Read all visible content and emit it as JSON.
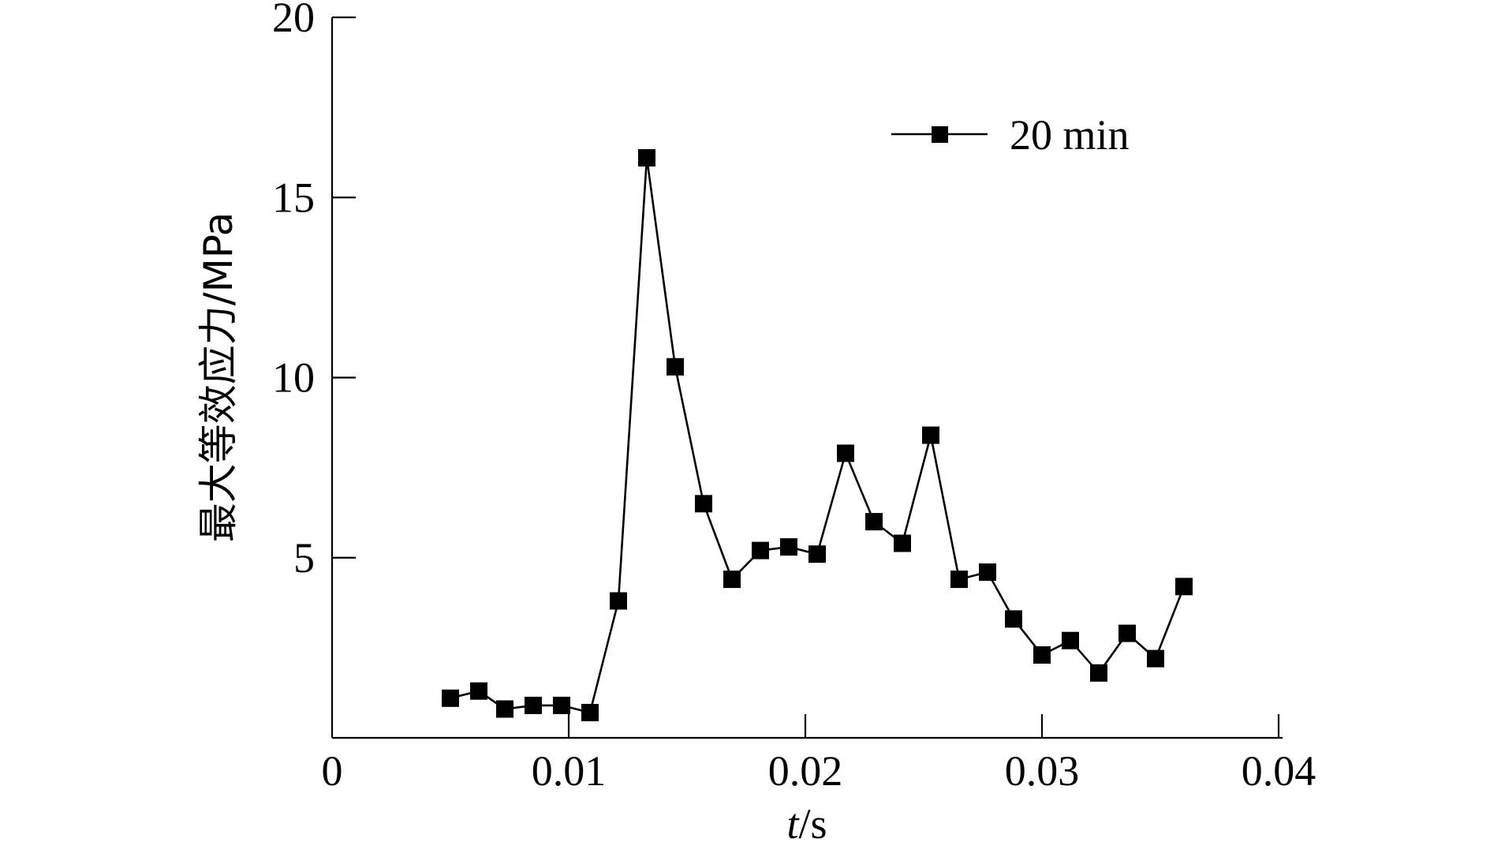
{
  "chart_data": {
    "type": "line",
    "title": "",
    "xlabel_italic": "t",
    "xlabel_unit": "/s",
    "ylabel": "最大等效应力/MPa",
    "xlim": [
      0,
      0.04
    ],
    "ylim": [
      0,
      20
    ],
    "x_ticks": [
      "0",
      "0.01",
      "0.02",
      "0.03",
      "0.04"
    ],
    "x_tick_values": [
      0,
      0.01,
      0.02,
      0.03,
      0.04
    ],
    "y_ticks": [
      "5",
      "10",
      "15",
      "20"
    ],
    "y_tick_values": [
      5,
      10,
      15,
      20
    ],
    "grid": false,
    "legend_position": "top-right",
    "colors": {
      "series": "#000000"
    },
    "series": [
      {
        "name": "20 min",
        "x": [
          0.005,
          0.0062,
          0.0073,
          0.0085,
          0.0097,
          0.0109,
          0.0121,
          0.0133,
          0.0145,
          0.0157,
          0.0169,
          0.0181,
          0.0193,
          0.0205,
          0.0217,
          0.0229,
          0.0241,
          0.0253,
          0.0265,
          0.0277,
          0.0288,
          0.03,
          0.0312,
          0.0324,
          0.0336,
          0.0348,
          0.036
        ],
        "values": [
          1.1,
          1.3,
          0.8,
          0.9,
          0.9,
          0.7,
          3.8,
          16.1,
          10.3,
          6.5,
          4.4,
          5.2,
          5.3,
          5.1,
          7.9,
          6.0,
          5.4,
          8.4,
          4.4,
          4.6,
          3.3,
          2.3,
          2.7,
          1.8,
          2.9,
          2.2,
          4.2
        ]
      }
    ]
  }
}
